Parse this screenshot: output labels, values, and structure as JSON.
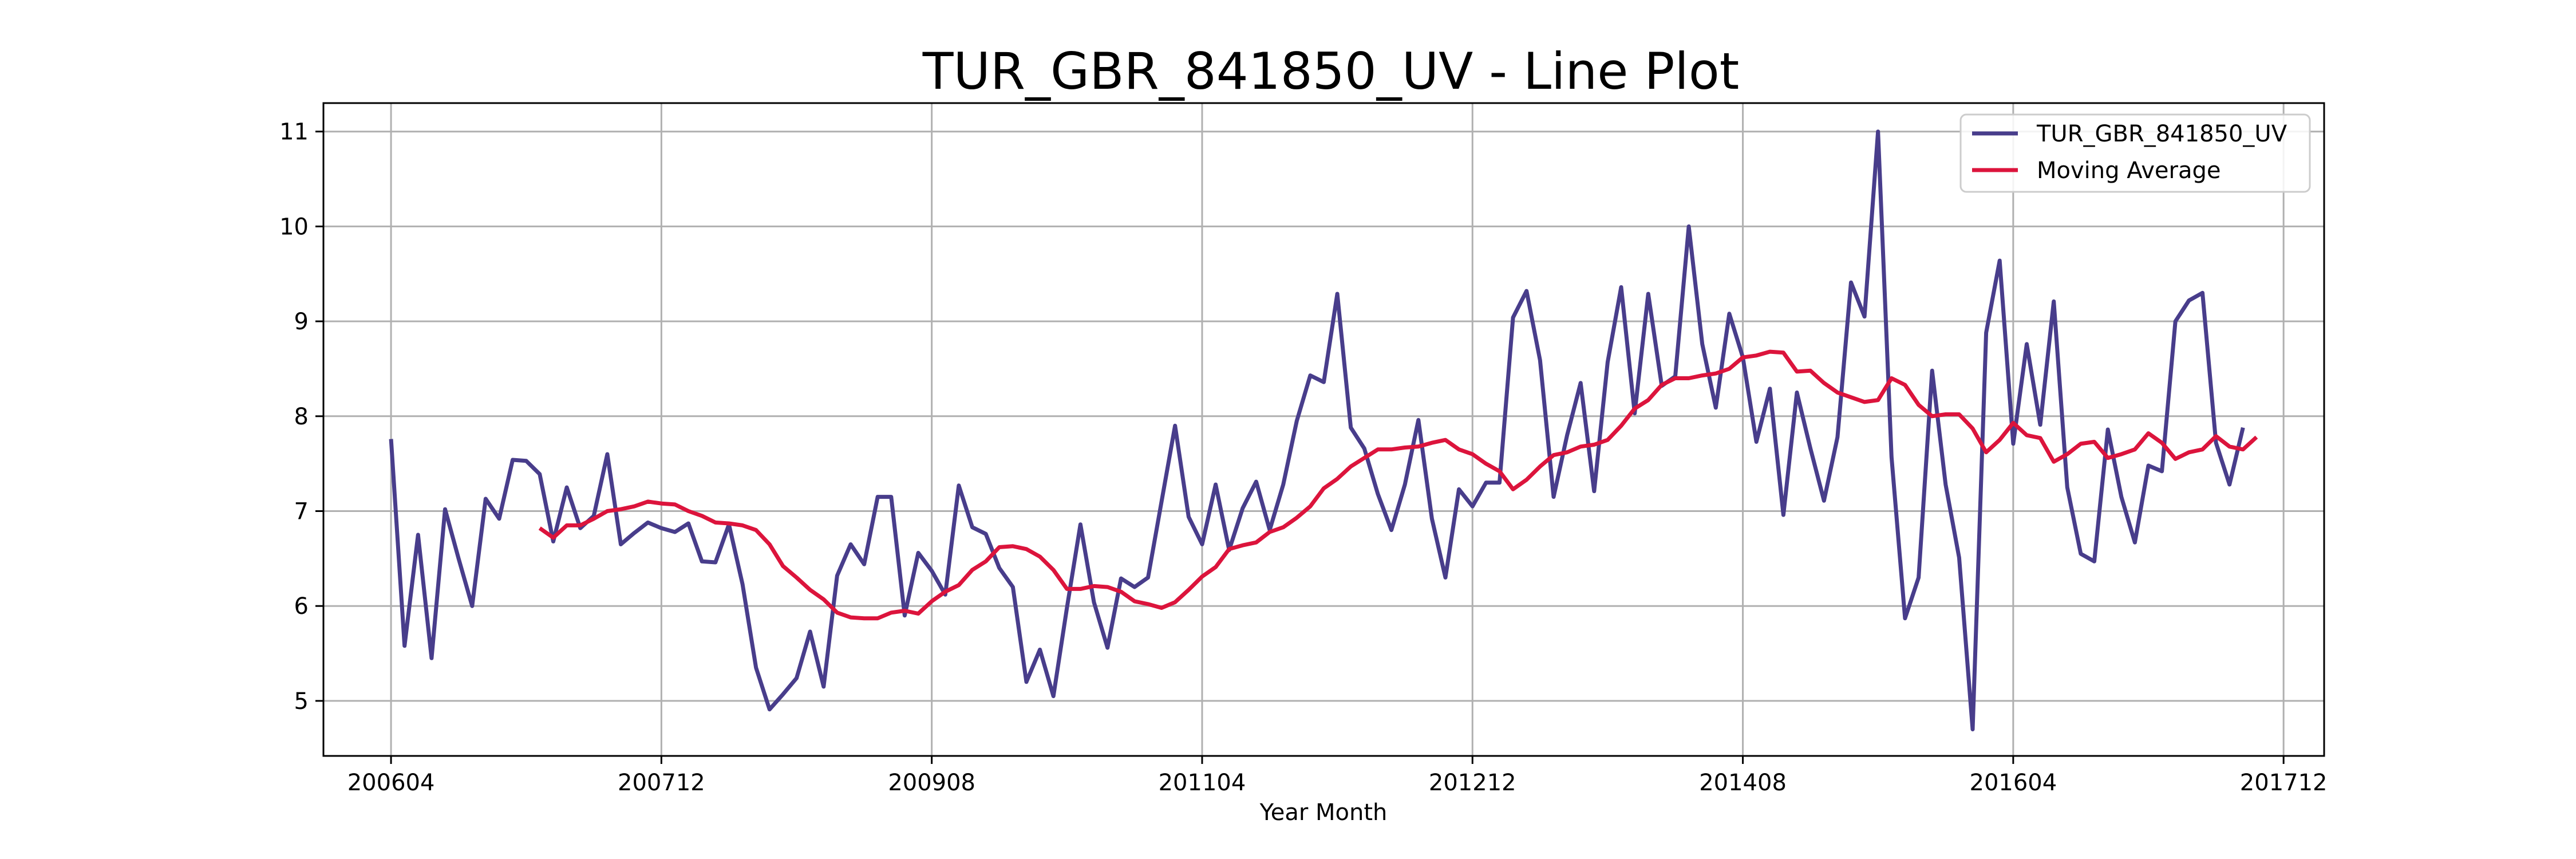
{
  "chart_data": {
    "type": "line",
    "title": "TUR_GBR_841850_UV - Line Plot",
    "xlabel": "Year Month",
    "ylabel": "",
    "x_ticks": [
      "200604",
      "200712",
      "200908",
      "201104",
      "201212",
      "201408",
      "201604",
      "201712"
    ],
    "y_ticks": [
      5,
      6,
      7,
      8,
      9,
      10,
      11
    ],
    "x_start": "2006-04",
    "xlim": [
      "2005-11",
      "2018-03"
    ],
    "ylim": [
      4.42,
      11.3
    ],
    "grid": true,
    "legend_position": "top-right",
    "series": [
      {
        "name": "TUR_GBR_841850_UV",
        "color": "#483d8b",
        "values": [
          7.76,
          5.58,
          6.75,
          5.45,
          7.02,
          6.5,
          6.0,
          7.13,
          6.92,
          7.54,
          7.53,
          7.39,
          6.68,
          7.25,
          6.82,
          6.95,
          7.6,
          6.65,
          6.77,
          6.88,
          6.82,
          6.78,
          6.87,
          6.47,
          6.46,
          6.86,
          6.23,
          5.35,
          4.91,
          5.07,
          5.24,
          5.73,
          5.15,
          6.32,
          6.65,
          6.44,
          7.15,
          7.15,
          5.9,
          6.56,
          6.37,
          6.12,
          7.27,
          6.83,
          6.76,
          6.4,
          6.2,
          5.2,
          5.54,
          5.05,
          5.98,
          6.86,
          6.04,
          5.56,
          6.29,
          6.2,
          6.3,
          7.1,
          7.9,
          6.94,
          6.65,
          7.28,
          6.59,
          7.03,
          7.31,
          6.8,
          7.28,
          7.95,
          8.43,
          8.36,
          9.29,
          7.88,
          7.66,
          7.18,
          6.8,
          7.28,
          7.96,
          6.92,
          6.3,
          7.23,
          7.05,
          7.3,
          7.3,
          9.04,
          9.32,
          8.59,
          7.15,
          7.8,
          8.35,
          7.21,
          8.57,
          9.36,
          8.03,
          9.29,
          8.32,
          8.42,
          10.0,
          8.76,
          8.09,
          9.08,
          8.62,
          7.73,
          8.29,
          6.96,
          8.25,
          7.66,
          7.11,
          7.78,
          9.41,
          9.05,
          11.0,
          7.57,
          5.87,
          6.3,
          8.48,
          7.28,
          6.51,
          4.7,
          8.88,
          9.64,
          7.71,
          8.76,
          7.91,
          9.21,
          7.25,
          6.55,
          6.47,
          7.86,
          7.15,
          6.67,
          7.48,
          7.42,
          9.0,
          9.22,
          9.3,
          7.72,
          7.28,
          7.88
        ]
      },
      {
        "name": "Moving Average",
        "color": "#dc143c",
        "offset": 11,
        "values": [
          6.82,
          6.72,
          6.85,
          6.85,
          6.92,
          7.0,
          7.02,
          7.05,
          7.1,
          7.08,
          7.07,
          7.0,
          6.95,
          6.88,
          6.87,
          6.85,
          6.8,
          6.65,
          6.42,
          6.3,
          6.17,
          6.07,
          5.93,
          5.88,
          5.87,
          5.87,
          5.93,
          5.95,
          5.92,
          6.05,
          6.15,
          6.22,
          6.38,
          6.47,
          6.62,
          6.63,
          6.6,
          6.52,
          6.38,
          6.18,
          6.18,
          6.21,
          6.2,
          6.15,
          6.05,
          6.02,
          5.98,
          6.04,
          6.17,
          6.31,
          6.41,
          6.6,
          6.64,
          6.67,
          6.78,
          6.83,
          6.93,
          7.05,
          7.24,
          7.34,
          7.47,
          7.56,
          7.65,
          7.65,
          7.67,
          7.68,
          7.72,
          7.75,
          7.65,
          7.6,
          7.5,
          7.42,
          7.23,
          7.33,
          7.47,
          7.59,
          7.62,
          7.68,
          7.7,
          7.75,
          7.9,
          8.08,
          8.17,
          8.33,
          8.4,
          8.4,
          8.43,
          8.45,
          8.5,
          8.62,
          8.64,
          8.68,
          8.67,
          8.47,
          8.48,
          8.35,
          8.25,
          8.2,
          8.15,
          8.17,
          8.4,
          8.33,
          8.12,
          8.0,
          8.02,
          8.02,
          7.87,
          7.62,
          7.75,
          7.93,
          7.8,
          7.77,
          7.52,
          7.6,
          7.71,
          7.73,
          7.56,
          7.6,
          7.65,
          7.82,
          7.72,
          7.55,
          7.62,
          7.65,
          7.79,
          7.68,
          7.65,
          7.78
        ]
      }
    ]
  }
}
